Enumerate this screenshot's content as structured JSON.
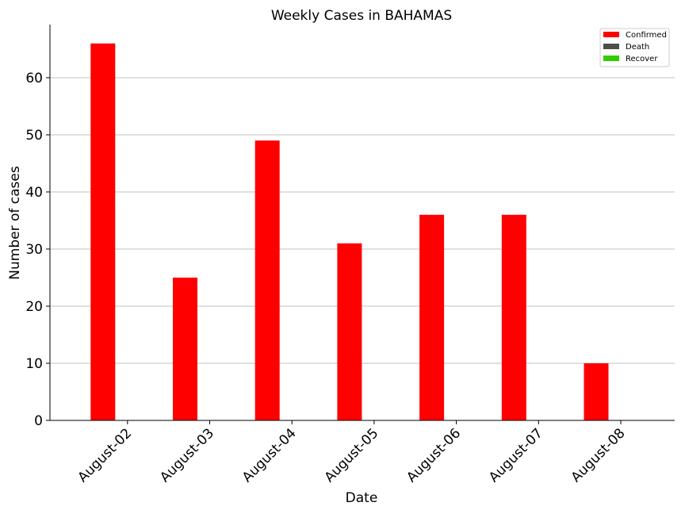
{
  "chart_data": {
    "type": "bar",
    "title": "Weekly Cases in BAHAMAS",
    "xlabel": "Date",
    "ylabel": "Number of cases",
    "categories": [
      "August-02",
      "August-03",
      "August-04",
      "August-05",
      "August-06",
      "August-07",
      "August-08"
    ],
    "series": [
      {
        "name": "Confirmed",
        "color": "#ff0000",
        "values": [
          66,
          25,
          49,
          31,
          36,
          36,
          10
        ]
      },
      {
        "name": "Death",
        "color": "#4d4d4d",
        "values": [
          0,
          0,
          0,
          0,
          0,
          0,
          0
        ]
      },
      {
        "name": "Recover",
        "color": "#33cc00",
        "values": [
          0,
          0,
          0,
          0,
          0,
          0,
          0
        ]
      }
    ],
    "ylim": [
      0,
      69.3
    ],
    "yticks": [
      0,
      10,
      20,
      30,
      40,
      50,
      60
    ],
    "grid": "horizontal",
    "legend_position": "top-right"
  }
}
